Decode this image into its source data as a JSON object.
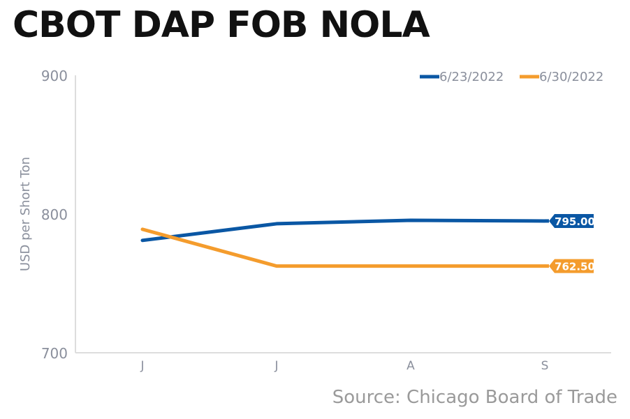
{
  "title": "CBOT DAP FOB NOLA",
  "source": "Source: Chicago Board of Trade",
  "chart_data": {
    "type": "line",
    "title": "CBOT DAP FOB NOLA",
    "xlabel": "",
    "ylabel": "USD per Short Ton",
    "categories": [
      "J",
      "J",
      "A",
      "S"
    ],
    "ylim": [
      700,
      900
    ],
    "yticks": [
      700,
      800,
      900
    ],
    "grid": false,
    "legend_position": "top-right",
    "series": [
      {
        "name": "6/23/2022",
        "color": "#0a57a4",
        "values": [
          781,
          793,
          795.5,
          795
        ],
        "end_label": "795.00"
      },
      {
        "name": "6/30/2022",
        "color": "#f49c2d",
        "values": [
          789,
          762.5,
          762.5,
          762.5
        ],
        "end_label": "762.50"
      }
    ]
  }
}
